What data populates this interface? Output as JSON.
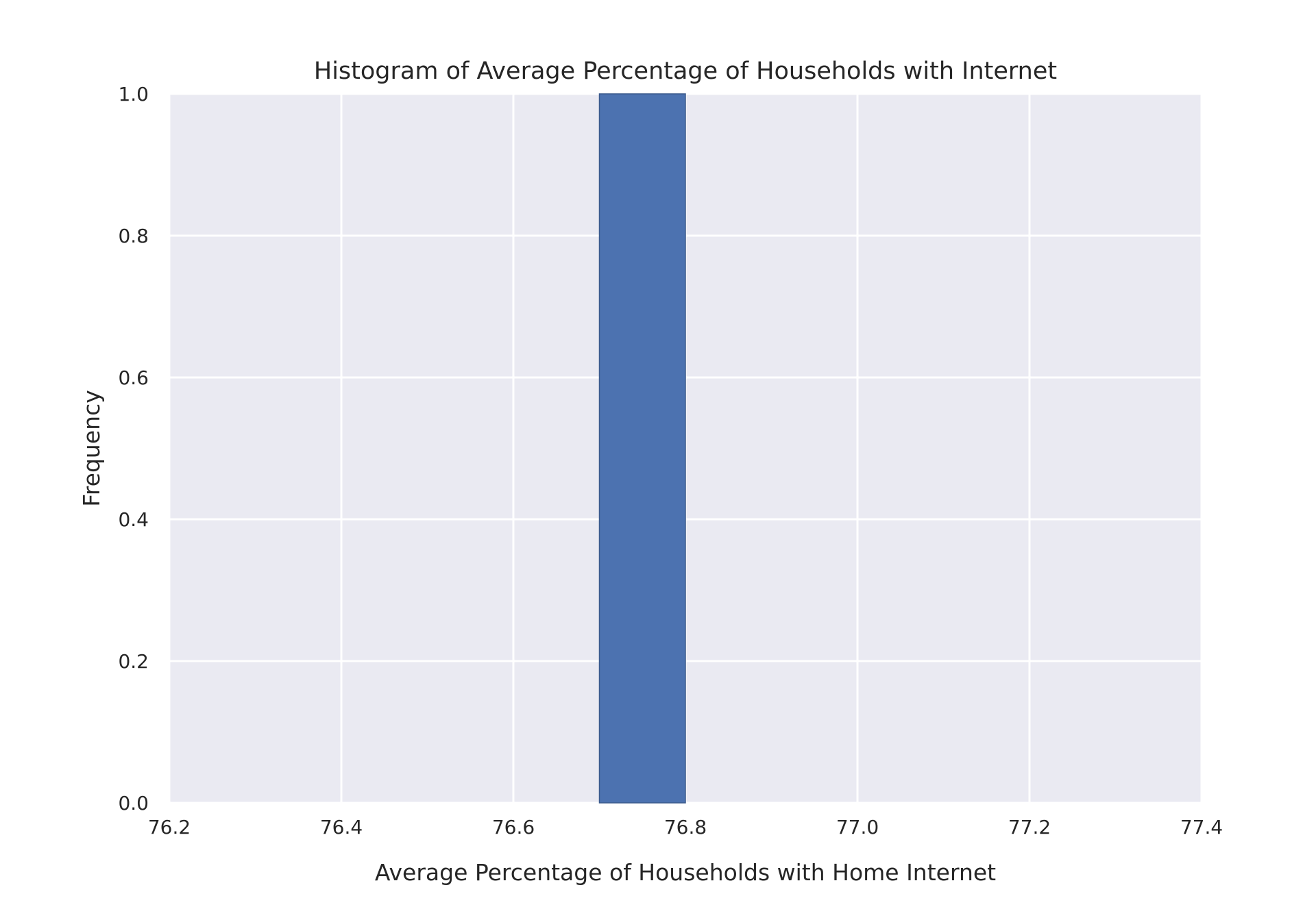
{
  "chart_data": {
    "type": "bar",
    "title": "Histogram of Average Percentage of Households with Internet",
    "xlabel": "Average Percentage of Households with Home Internet",
    "ylabel": "Frequency",
    "xlim": [
      76.2,
      77.4
    ],
    "ylim": [
      0.0,
      1.0
    ],
    "xticks": [
      "76.2",
      "76.4",
      "76.6",
      "76.8",
      "77.0",
      "77.2",
      "77.4"
    ],
    "yticks": [
      "0.0",
      "0.2",
      "0.4",
      "0.6",
      "0.8",
      "1.0"
    ],
    "bins": [
      {
        "x0": 76.2,
        "x1": 76.3,
        "count": 0
      },
      {
        "x0": 76.3,
        "x1": 76.4,
        "count": 0
      },
      {
        "x0": 76.4,
        "x1": 76.5,
        "count": 0
      },
      {
        "x0": 76.5,
        "x1": 76.6,
        "count": 0
      },
      {
        "x0": 76.6,
        "x1": 76.7,
        "count": 0
      },
      {
        "x0": 76.7,
        "x1": 76.8,
        "count": 1
      },
      {
        "x0": 76.8,
        "x1": 76.9,
        "count": 0
      },
      {
        "x0": 76.9,
        "x1": 77.0,
        "count": 0
      },
      {
        "x0": 77.0,
        "x1": 77.1,
        "count": 0
      },
      {
        "x0": 77.1,
        "x1": 77.2,
        "count": 0
      }
    ],
    "grid": true,
    "colors": {
      "bar": "#4c72b0",
      "bar_edge": "#3b5a8c",
      "plot_background": "#eaeaf2",
      "grid": "#ffffff",
      "text": "#262626"
    }
  }
}
